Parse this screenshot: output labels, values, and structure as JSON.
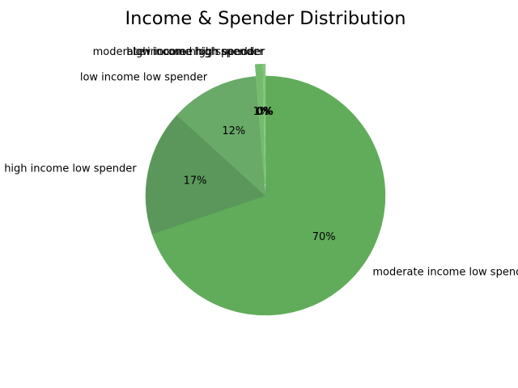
{
  "chart_data": {
    "type": "pie",
    "title": "Income & Spender Distribution",
    "labels": [
      "moderate income low spender",
      "high income low spender",
      "low income low spender",
      "moderate income high spender",
      "high income high spender",
      "low income high spender"
    ],
    "values": [
      70,
      17,
      12,
      1,
      0.2,
      0.1
    ],
    "percent_labels": [
      "70%",
      "17%",
      "12%",
      "1%",
      "0%",
      "0%"
    ],
    "colors": [
      "#60ac5a",
      "#5b975b",
      "#6aaa69",
      "#74bb6e",
      "#7dc276",
      "#88c982"
    ],
    "exploded": [
      false,
      false,
      false,
      true,
      true,
      true
    ],
    "start_angle_deg": 90,
    "counterclock": false,
    "legend": "none"
  }
}
